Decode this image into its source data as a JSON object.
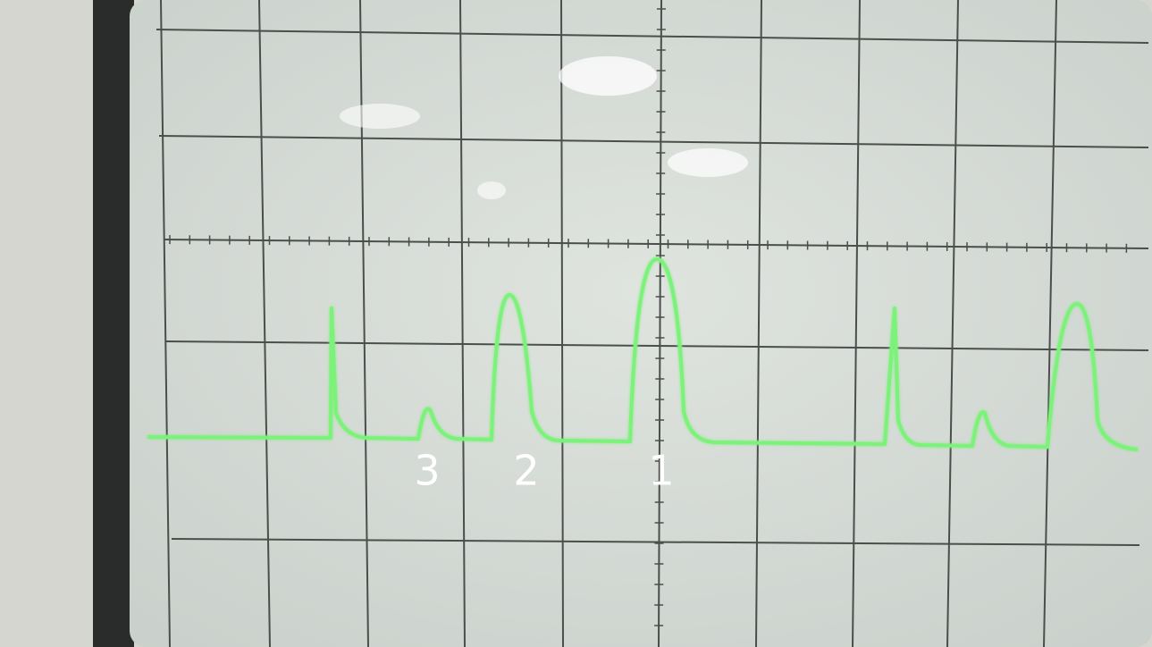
{
  "annotations": [
    "3",
    "2",
    "1"
  ]
}
